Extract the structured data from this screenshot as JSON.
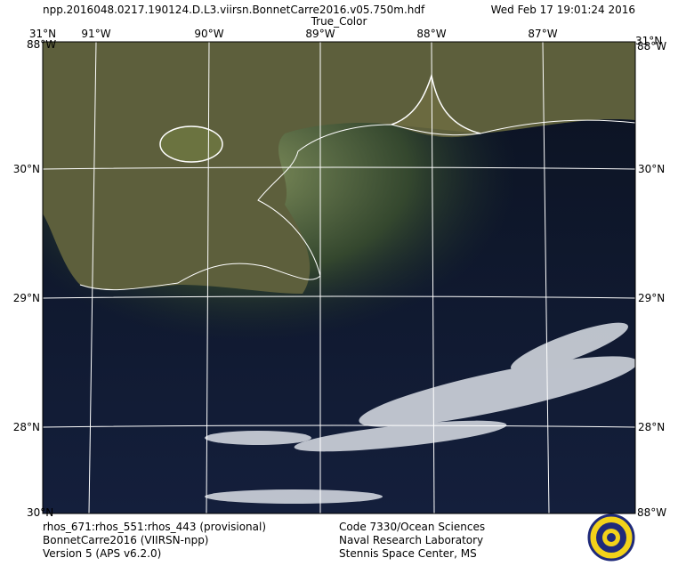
{
  "header": {
    "filename": "npp.2016048.0217.190124.D.L3.viirsn.BonnetCarre2016.v05.750m.hdf",
    "datetime": "Wed Feb 17 19:01:24 2016",
    "product": "True_Color"
  },
  "grid": {
    "lon_labels": [
      "91°W",
      "90°W",
      "89°W",
      "88°W",
      "87°W"
    ],
    "lat_labels": [
      "30°N",
      "29°N",
      "28°N"
    ],
    "corner_lat_top": "31°N",
    "corner_lon": "88°W",
    "corner_lat_bottom": "30°N"
  },
  "footer": {
    "left": [
      "rhos_671:rhos_551:rhos_443 (provisional)",
      "BonnetCarre2016 (VIIRSN-npp)",
      "Version 5 (APS v6.2.0)"
    ],
    "center": [
      "Code 7330/Ocean Sciences",
      "Naval Research Laboratory",
      "Stennis Space Center, MS"
    ]
  }
}
